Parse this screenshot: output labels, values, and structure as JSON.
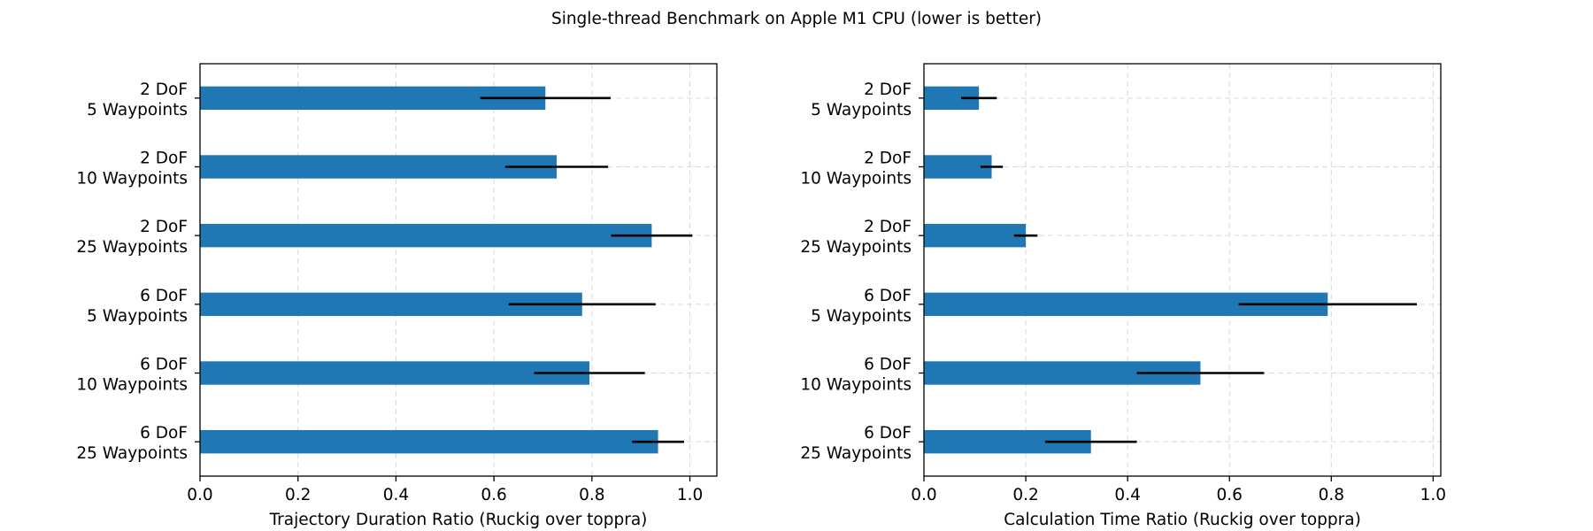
{
  "figure_title": "Single-thread Benchmark on Apple M1 CPU (lower is better)",
  "chart_data": [
    {
      "type": "bar",
      "orientation": "horizontal",
      "categories": [
        [
          "2 DoF",
          "5 Waypoints"
        ],
        [
          "2 DoF",
          "10 Waypoints"
        ],
        [
          "2 DoF",
          "25 Waypoints"
        ],
        [
          "6 DoF",
          "5 Waypoints"
        ],
        [
          "6 DoF",
          "10 Waypoints"
        ],
        [
          "6 DoF",
          "25 Waypoints"
        ]
      ],
      "values": [
        0.705,
        0.728,
        0.922,
        0.78,
        0.795,
        0.935
      ],
      "errors": [
        0.133,
        0.105,
        0.083,
        0.15,
        0.113,
        0.053
      ],
      "xlabel": "Trajectory Duration Ratio (Ruckig over toppra)",
      "xlim": [
        0.0,
        1.055
      ],
      "xticks": [
        "0.0",
        "0.2",
        "0.4",
        "0.6",
        "0.8",
        "1.0"
      ],
      "color": "#1f77b4",
      "grid": true
    },
    {
      "type": "bar",
      "orientation": "horizontal",
      "categories": [
        [
          "2 DoF",
          "5 Waypoints"
        ],
        [
          "2 DoF",
          "10 Waypoints"
        ],
        [
          "2 DoF",
          "25 Waypoints"
        ],
        [
          "6 DoF",
          "5 Waypoints"
        ],
        [
          "6 DoF",
          "10 Waypoints"
        ],
        [
          "6 DoF",
          "25 Waypoints"
        ]
      ],
      "values": [
        0.108,
        0.133,
        0.2,
        0.793,
        0.543,
        0.328
      ],
      "errors": [
        0.035,
        0.022,
        0.023,
        0.175,
        0.125,
        0.09
      ],
      "xlabel": "Calculation Time Ratio (Ruckig over toppra)",
      "xlim": [
        0.0,
        1.015
      ],
      "xticks": [
        "0.0",
        "0.2",
        "0.4",
        "0.6",
        "0.8",
        "1.0"
      ],
      "color": "#1f77b4",
      "grid": true
    }
  ]
}
